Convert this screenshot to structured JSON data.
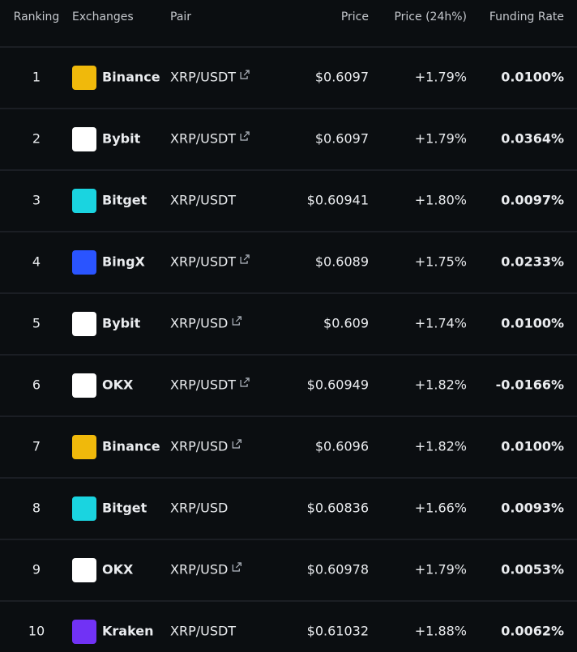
{
  "table": {
    "columns": [
      "Ranking",
      "Exchanges",
      "Pair",
      "Price",
      "Price (24h%)",
      "Funding Rate"
    ],
    "rows": [
      {
        "ranking": "1",
        "exchange": "Binance",
        "logo_color": "#f0b90b",
        "pair": "XRP/USDT",
        "external_link": true,
        "price": "$0.6097",
        "change": "+1.79%",
        "funding_rate": "0.0100%",
        "funding_color": "#eaecef"
      },
      {
        "ranking": "2",
        "exchange": "Bybit",
        "logo_color": "#ffffff",
        "pair": "XRP/USDT",
        "external_link": true,
        "price": "$0.6097",
        "change": "+1.79%",
        "funding_rate": "0.0364%",
        "funding_color": "#f6465d"
      },
      {
        "ranking": "3",
        "exchange": "Bitget",
        "logo_color": "#1ad4e0",
        "pair": "XRP/USDT",
        "external_link": false,
        "price": "$0.60941",
        "change": "+1.80%",
        "funding_rate": "0.0097%",
        "funding_color": "#eaecef"
      },
      {
        "ranking": "4",
        "exchange": "BingX",
        "logo_color": "#2a54ff",
        "pair": "XRP/USDT",
        "external_link": true,
        "price": "$0.6089",
        "change": "+1.75%",
        "funding_rate": "0.0233%",
        "funding_color": "#f6465d"
      },
      {
        "ranking": "5",
        "exchange": "Bybit",
        "logo_color": "#ffffff",
        "pair": "XRP/USD",
        "external_link": true,
        "price": "$0.609",
        "change": "+1.74%",
        "funding_rate": "0.0100%",
        "funding_color": "#eaecef"
      },
      {
        "ranking": "6",
        "exchange": "OKX",
        "logo_color": "#ffffff",
        "pair": "XRP/USDT",
        "external_link": true,
        "price": "$0.60949",
        "change": "+1.82%",
        "funding_rate": "-0.0166%",
        "funding_color": "#2ebd85"
      },
      {
        "ranking": "7",
        "exchange": "Binance",
        "logo_color": "#f0b90b",
        "pair": "XRP/USD",
        "external_link": true,
        "price": "$0.6096",
        "change": "+1.82%",
        "funding_rate": "0.0100%",
        "funding_color": "#eaecef"
      },
      {
        "ranking": "8",
        "exchange": "Bitget",
        "logo_color": "#1ad4e0",
        "pair": "XRP/USD",
        "external_link": false,
        "price": "$0.60836",
        "change": "+1.66%",
        "funding_rate": "0.0093%",
        "funding_color": "#2ebd85"
      },
      {
        "ranking": "9",
        "exchange": "OKX",
        "logo_color": "#ffffff",
        "pair": "XRP/USD",
        "external_link": true,
        "price": "$0.60978",
        "change": "+1.79%",
        "funding_rate": "0.0053%",
        "funding_color": "#eaecef"
      },
      {
        "ranking": "10",
        "exchange": "Kraken",
        "logo_color": "#7132f5",
        "pair": "XRP/USDT",
        "external_link": false,
        "price": "$0.61032",
        "change": "+1.88%",
        "funding_rate": "0.0062%",
        "funding_color": "#eaecef"
      }
    ]
  }
}
